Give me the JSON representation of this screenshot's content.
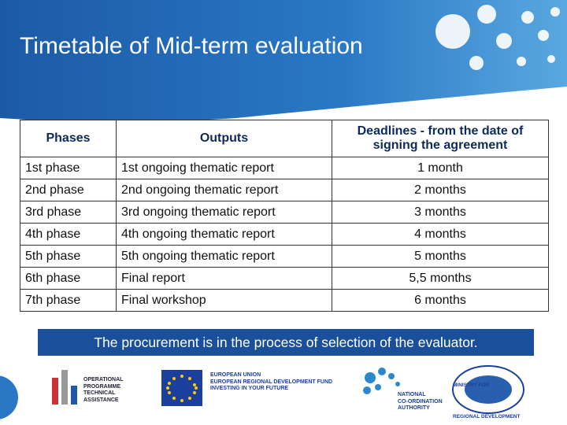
{
  "header": {
    "title": "Timetable of Mid-term evaluation"
  },
  "table": {
    "columns": [
      "Phases",
      "Outputs",
      "Deadlines - from the date of signing the agreement"
    ],
    "rows": [
      [
        "1st phase",
        "1st ongoing thematic report",
        "1 month"
      ],
      [
        "2nd phase",
        "2nd ongoing thematic report",
        "2 months"
      ],
      [
        "3rd phase",
        "3rd ongoing thematic report",
        "3 months"
      ],
      [
        "4th phase",
        "4th ongoing thematic report",
        "4 months"
      ],
      [
        "5th phase",
        "5th ongoing thematic report",
        "5 months"
      ],
      [
        "6th phase",
        "Final report",
        "5,5 months"
      ],
      [
        "7th phase",
        "Final workshop",
        "6 months"
      ]
    ]
  },
  "note": "The procurement is in the process of selection of the evaluator.",
  "logos": {
    "optech": [
      "OPERATIONAL",
      "PROGRAMME",
      "TECHNICAL",
      "ASSISTANCE"
    ],
    "eu": [
      "EUROPEAN UNION",
      "EUROPEAN REGIONAL DEVELOPMENT FUND",
      "INVESTING IN YOUR FUTURE"
    ],
    "nca": [
      "NATIONAL",
      "CO-ORDINATION",
      "AUTHORITY"
    ],
    "ministry": [
      "MINISTRY FOR",
      "REGIONAL DEVELOPMENT"
    ]
  }
}
